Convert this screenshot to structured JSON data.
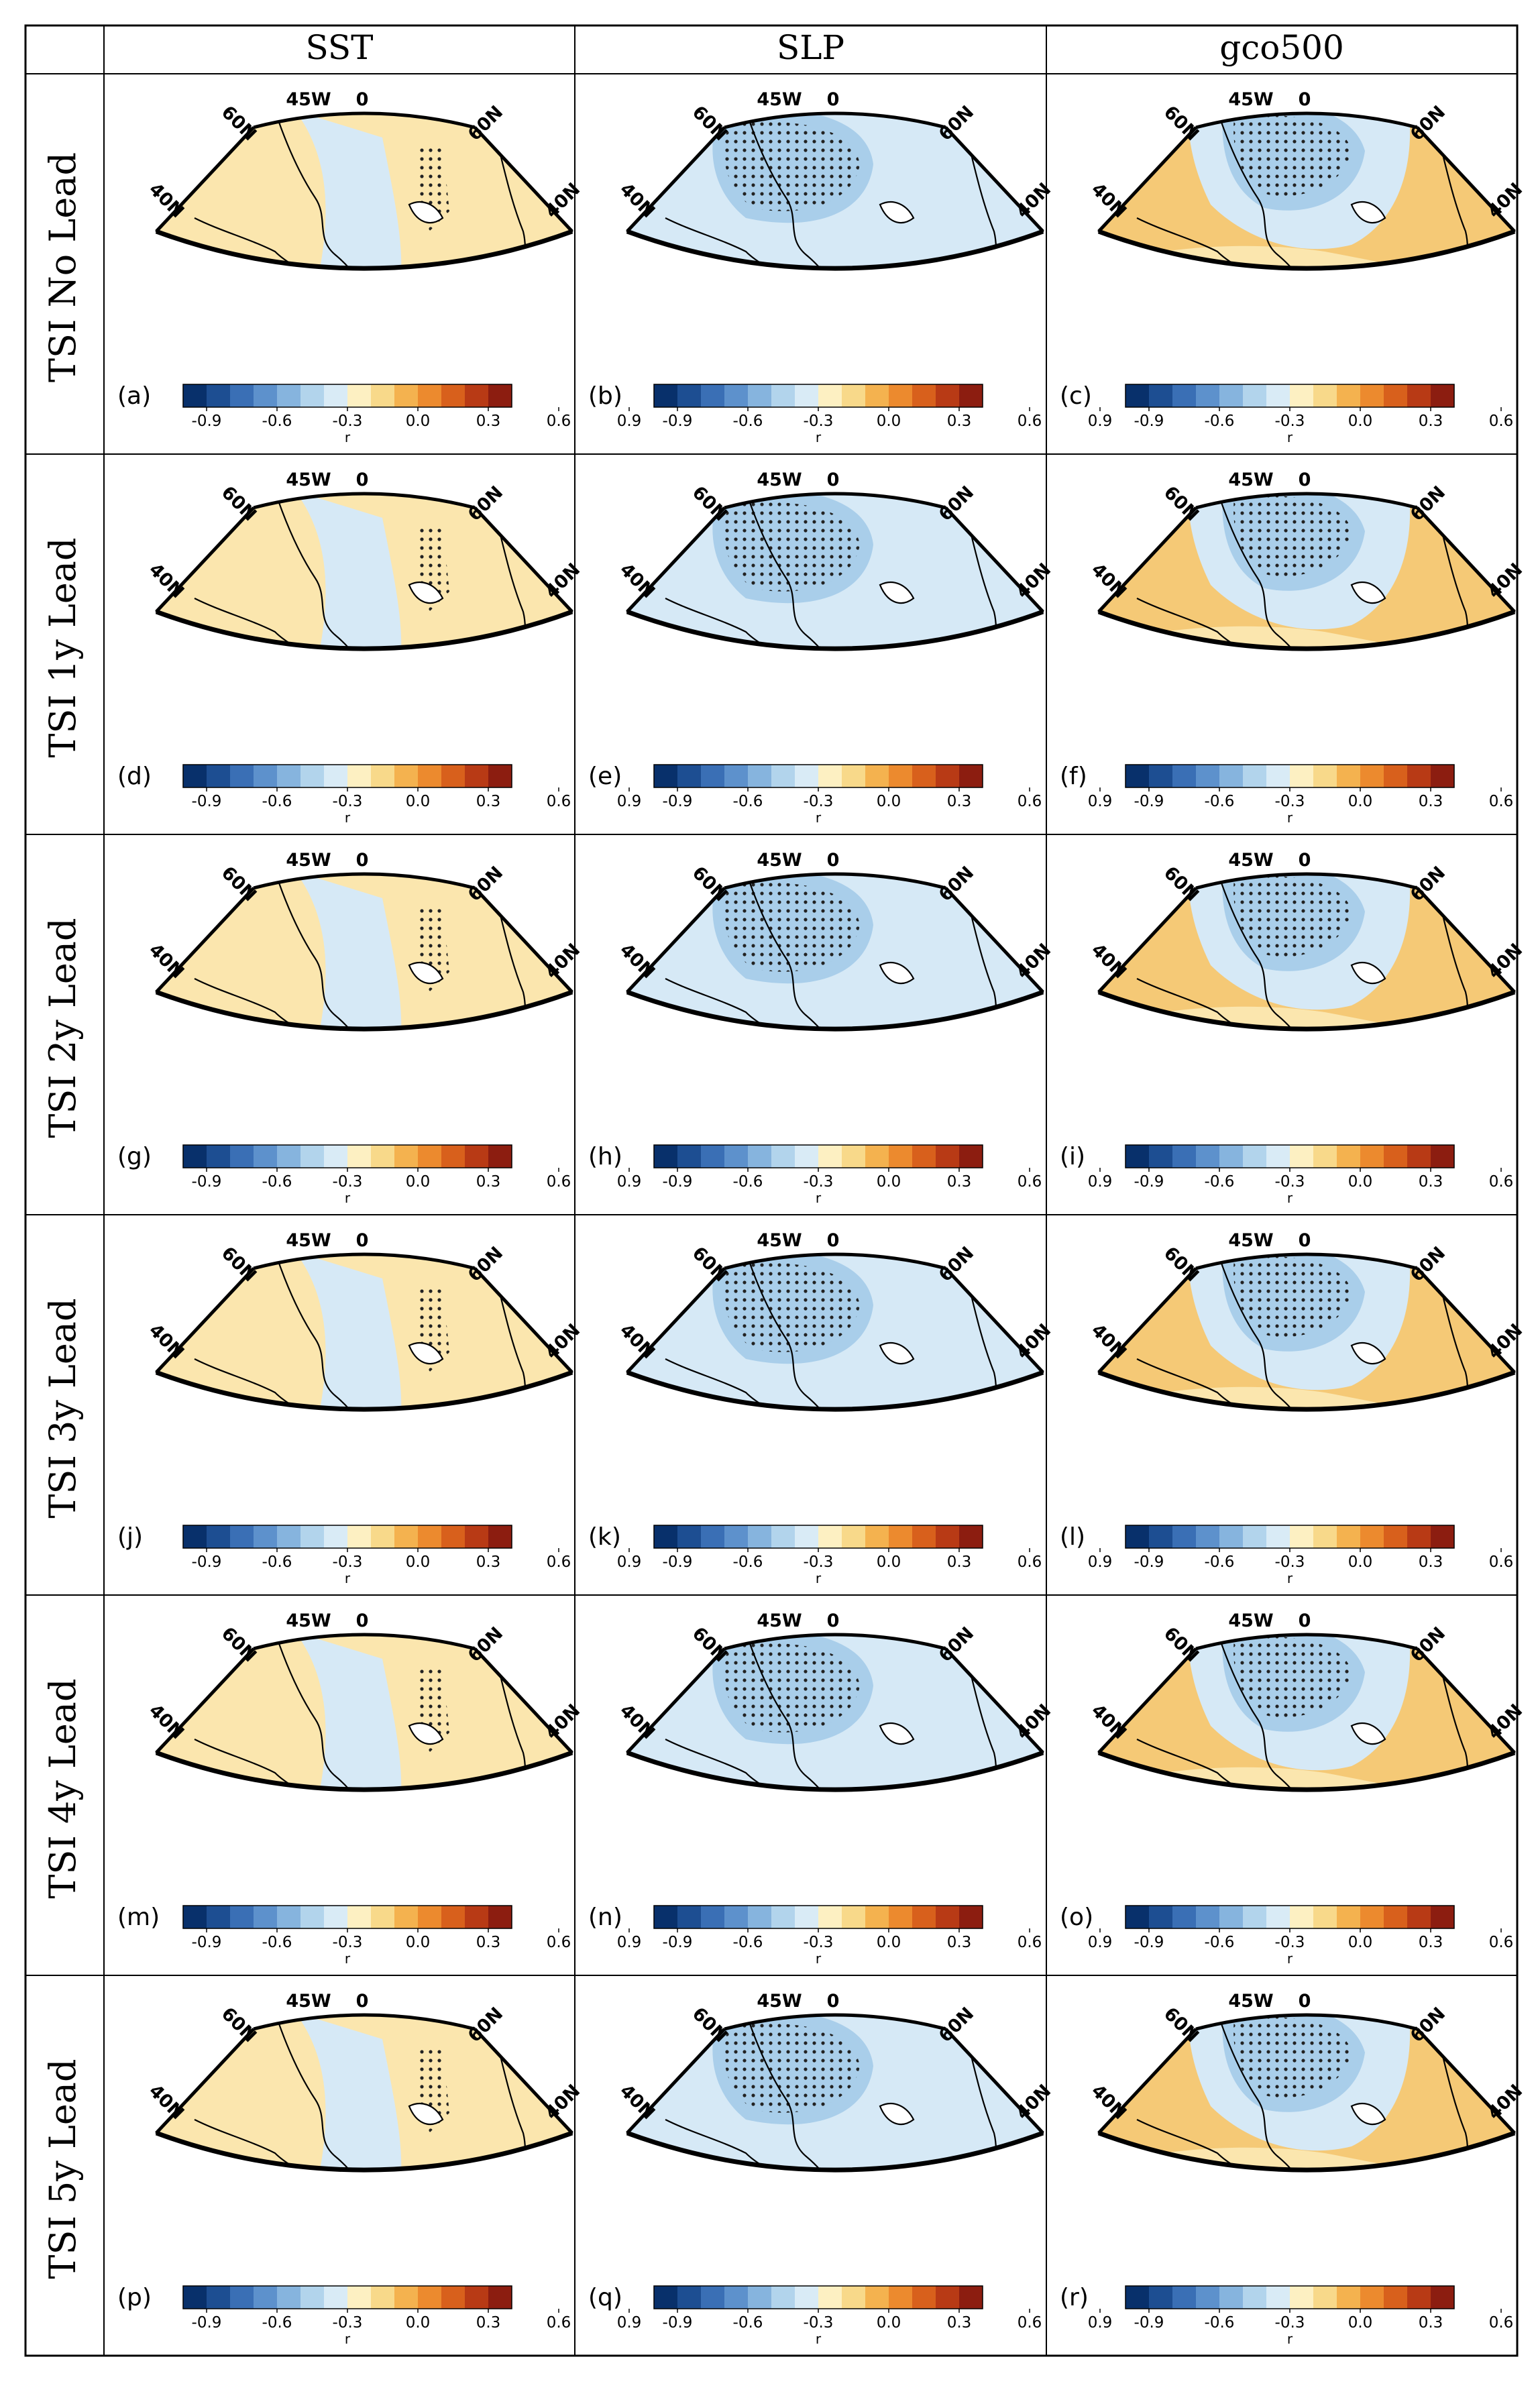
{
  "columns": [
    "SST",
    "SLP",
    "gco500"
  ],
  "rows": [
    "TSI No Lead",
    "TSI 1y Lead",
    "TSI 2y Lead",
    "TSI 3y Lead",
    "TSI 4y Lead",
    "TSI 5y Lead"
  ],
  "panel_labels": [
    [
      "(a)",
      "(b)",
      "(c)"
    ],
    [
      "(d)",
      "(e)",
      "(f)"
    ],
    [
      "(g)",
      "(h)",
      "(i)"
    ],
    [
      "(j)",
      "(k)",
      "(l)"
    ],
    [
      "(m)",
      "(n)",
      "(o)"
    ],
    [
      "(p)",
      "(q)",
      "(r)"
    ]
  ],
  "map_labels": {
    "lon_top_left": "45W",
    "lon_top_right": "0",
    "lat_upper": "60N",
    "lat_lower": "40N",
    "lon_bottom_left": "45W",
    "lon_bottom_right": "0"
  },
  "colorbar": {
    "ticks": [
      "-0.9",
      "-0.6",
      "-0.3",
      "0.0",
      "0.3",
      "0.6",
      "0.9"
    ],
    "title": "r",
    "colors": [
      "#08306b",
      "#1d4e92",
      "#3a6fb5",
      "#5d91cc",
      "#86b4de",
      "#b2d4ec",
      "#d9ebf6",
      "#fdf0c2",
      "#f8d98a",
      "#f4b24f",
      "#ec8a2e",
      "#d8601c",
      "#b83a15",
      "#8c1d10"
    ]
  },
  "colors": {
    "neg_weak": "#d6e9f6",
    "neg_mid": "#a9ceea",
    "pos_weak": "#fbe6ae",
    "pos_mid": "#f5c976",
    "pos_strong": "#e6964a",
    "border": "#000000"
  }
}
